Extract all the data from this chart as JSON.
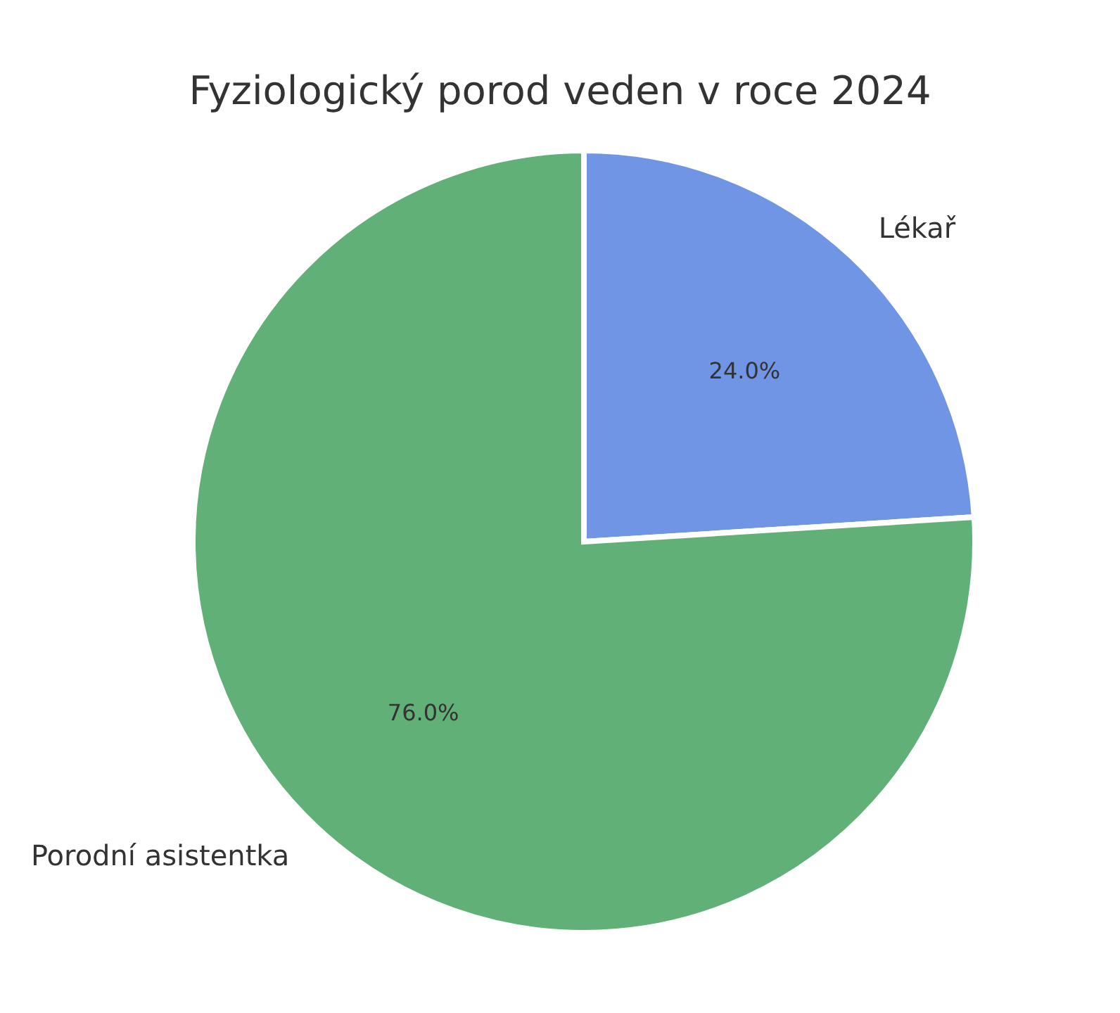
{
  "chart_data": {
    "type": "pie",
    "title": "Fyziologický porod veden v roce 2024",
    "categories": [
      "Lékař",
      "Porodní asistentka"
    ],
    "values": [
      24.0,
      76.0
    ],
    "colors": [
      "#6f95e4",
      "#60b077"
    ],
    "value_labels": [
      "24.0%",
      "76.0%"
    ],
    "legend": false
  }
}
